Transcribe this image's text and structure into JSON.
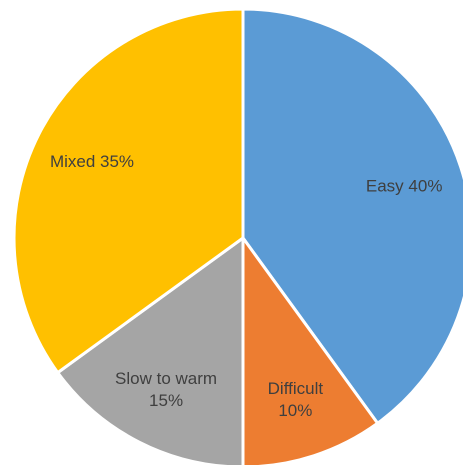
{
  "chart_data": {
    "type": "pie",
    "start_angle_deg": 0,
    "direction": "clockwise",
    "slices": [
      {
        "label_lines": [
          "Easy 40%"
        ],
        "value": 40,
        "color": "#5B9BD5"
      },
      {
        "label_lines": [
          "Difficult",
          "10%"
        ],
        "value": 10,
        "color": "#ED7D31"
      },
      {
        "label_lines": [
          "Slow to warm",
          "15%"
        ],
        "value": 15,
        "color": "#A5A5A5"
      },
      {
        "label_lines": [
          "Mixed 35%"
        ],
        "value": 35,
        "color": "#FFC000"
      }
    ]
  }
}
